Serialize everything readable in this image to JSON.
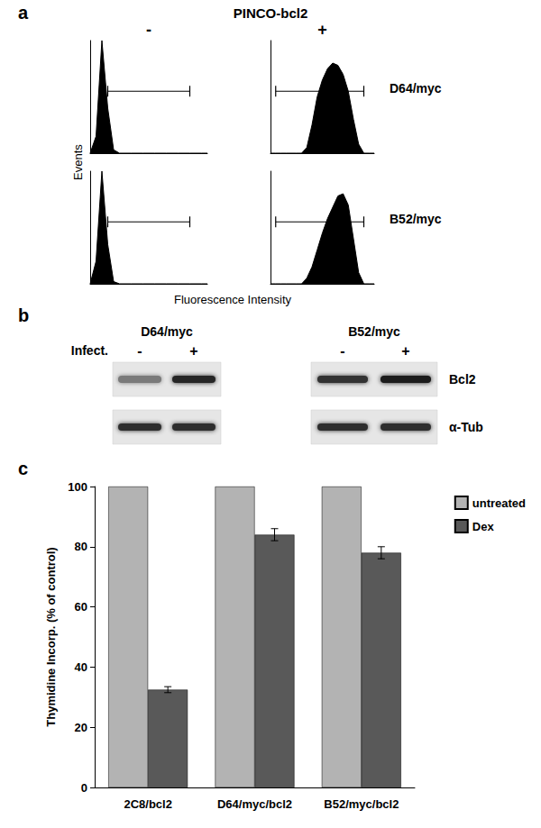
{
  "figure": {
    "a": {
      "label": "a",
      "title": "PINCO-bcl2",
      "columns": [
        "-",
        "+"
      ],
      "rows": [
        "D64/myc",
        "B52/myc"
      ],
      "xlabel": "Fluorescence Intensity",
      "ylabel": "Events"
    },
    "b": {
      "label": "b",
      "groups": [
        "D64/myc",
        "B52/myc"
      ],
      "lane_header": "Infect.",
      "lanes": [
        "-",
        "+"
      ],
      "bands": [
        "Bcl2",
        "α-Tub"
      ]
    },
    "c": {
      "label": "c"
    }
  },
  "chart_data": [
    {
      "type": "area",
      "panel": "a",
      "row": "D64/myc",
      "column": "-",
      "color": "#000000",
      "x": [
        0,
        5,
        10,
        15,
        20,
        25,
        30,
        35,
        40,
        45,
        50,
        55,
        60,
        65,
        70,
        75,
        80,
        85,
        90,
        95,
        100
      ],
      "values": [
        0,
        15,
        100,
        40,
        3,
        0,
        0,
        0,
        0,
        0,
        0,
        0,
        0,
        0,
        0,
        0,
        0,
        0,
        0,
        0,
        0
      ],
      "xlim": [
        0,
        100
      ],
      "ylim": [
        0,
        100
      ],
      "xticks": [],
      "yticks": [],
      "tick_labels": false,
      "grid": false,
      "gate": [
        15,
        85
      ],
      "gate_level": 55
    },
    {
      "type": "area",
      "panel": "a",
      "row": "D64/myc",
      "column": "+",
      "color": "#000000",
      "x": [
        0,
        5,
        10,
        15,
        20,
        25,
        30,
        35,
        40,
        45,
        50,
        55,
        60,
        65,
        70,
        75,
        80,
        85,
        90,
        95,
        100
      ],
      "values": [
        0,
        0,
        0,
        0,
        0,
        0,
        0,
        5,
        25,
        50,
        65,
        75,
        80,
        78,
        70,
        55,
        30,
        8,
        0,
        0,
        0
      ],
      "xlim": [
        0,
        100
      ],
      "ylim": [
        0,
        100
      ],
      "xticks": [],
      "yticks": [],
      "tick_labels": false,
      "grid": false,
      "gate": [
        5,
        90
      ],
      "gate_level": 55
    },
    {
      "type": "area",
      "panel": "a",
      "row": "B52/myc",
      "column": "-",
      "color": "#000000",
      "x": [
        0,
        5,
        10,
        15,
        20,
        25,
        30,
        35,
        40,
        45,
        50,
        55,
        60,
        65,
        70,
        75,
        80,
        85,
        90,
        95,
        100
      ],
      "values": [
        0,
        20,
        100,
        35,
        2,
        0,
        0,
        0,
        0,
        0,
        0,
        0,
        0,
        0,
        0,
        0,
        0,
        0,
        0,
        0,
        0
      ],
      "xlim": [
        0,
        100
      ],
      "ylim": [
        0,
        100
      ],
      "xticks": [],
      "yticks": [],
      "tick_labels": false,
      "grid": false,
      "gate": [
        15,
        85
      ],
      "gate_level": 55
    },
    {
      "type": "area",
      "panel": "a",
      "row": "B52/myc",
      "column": "+",
      "color": "#000000",
      "x": [
        0,
        5,
        10,
        15,
        20,
        25,
        30,
        35,
        40,
        45,
        50,
        55,
        60,
        65,
        70,
        75,
        80,
        85,
        90,
        95,
        100
      ],
      "values": [
        0,
        0,
        0,
        0,
        0,
        0,
        0,
        5,
        15,
        30,
        45,
        58,
        68,
        78,
        80,
        70,
        40,
        10,
        0,
        0,
        0
      ],
      "xlim": [
        0,
        100
      ],
      "ylim": [
        0,
        100
      ],
      "xticks": [],
      "yticks": [],
      "tick_labels": false,
      "grid": false,
      "gate": [
        5,
        90
      ],
      "gate_level": 55
    },
    {
      "type": "bar",
      "panel": "c",
      "ylabel": "Thymidine Incorp. (% of control)",
      "categories": [
        "2C8/bcl2",
        "D64/myc/bcl2",
        "B52/myc/bcl2"
      ],
      "series": [
        {
          "name": "untreated",
          "color": "#b3b3b3",
          "values": [
            100,
            100,
            100
          ]
        },
        {
          "name": "Dex",
          "color": "#595959",
          "values": [
            32.5,
            84,
            78
          ],
          "errors": [
            1,
            2,
            2
          ]
        }
      ],
      "ylim": [
        0,
        100
      ],
      "yticks": [
        0,
        20,
        40,
        60,
        80,
        100
      ],
      "grid": false,
      "legend": "upper right"
    }
  ]
}
